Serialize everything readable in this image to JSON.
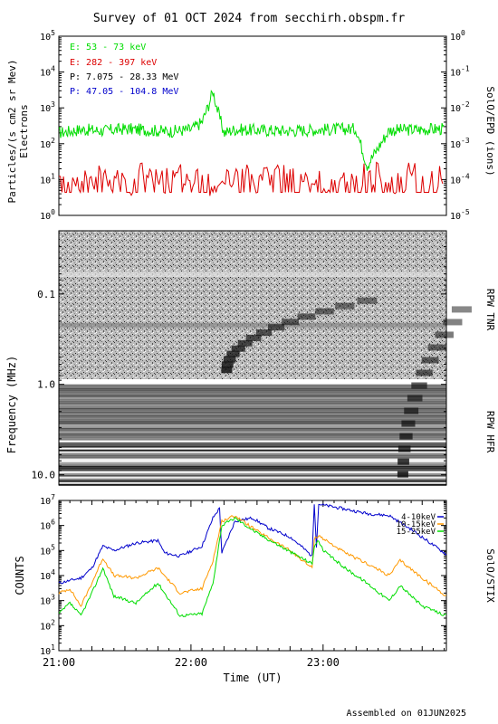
{
  "title": "Survey of 01 OCT 2024 from secchirh.obspm.fr",
  "footer": "Assembled on 01JUN2025",
  "colors": {
    "green": "#00dd00",
    "red": "#dd0000",
    "blue": "#0000cc",
    "orange": "#ff9900",
    "black": "#000000"
  },
  "chart_data": [
    {
      "type": "line",
      "panel": "particles",
      "ylabel": "Particles/(s cm2 sr Mev)",
      "ylabel2": "Electrons",
      "right_label": "SolO/EPD (ions)",
      "yscale": "log",
      "ylim": [
        1,
        100000
      ],
      "y_ticks": [
        "10^0",
        "10^1",
        "10^2",
        "10^3",
        "10^4",
        "10^5"
      ],
      "y2lim": [
        1e-05,
        1
      ],
      "y2_ticks": [
        "10^-5",
        "10^-4",
        "10^-3",
        "10^-2",
        "10^-1",
        "10^0"
      ],
      "legend": [
        {
          "label": "E: 53 - 73 keV",
          "color": "green"
        },
        {
          "label": "E: 282 - 397 keV",
          "color": "red"
        },
        {
          "label": "P: 7.075 - 28.33 MeV",
          "color": "black"
        },
        {
          "label": "P: 47.05 - 104.8 MeV",
          "color": "blue"
        }
      ],
      "series": [
        {
          "name": "E: 53 - 73 keV",
          "color": "green",
          "x": [
            "21:00",
            "21:10",
            "21:20",
            "21:30",
            "21:40",
            "21:50",
            "22:00",
            "22:05",
            "22:08",
            "22:10",
            "22:12",
            "22:15",
            "22:20",
            "22:30",
            "22:45",
            "23:00",
            "23:15",
            "23:20",
            "23:30",
            "23:45",
            "23:55"
          ],
          "values": [
            200,
            250,
            230,
            260,
            240,
            220,
            250,
            400,
            1200,
            3000,
            900,
            200,
            250,
            240,
            230,
            250,
            260,
            25,
            240,
            250,
            260
          ]
        },
        {
          "name": "E: 282 - 397 keV",
          "color": "red",
          "x": [
            "21:00",
            "21:10",
            "21:20",
            "21:30",
            "21:40",
            "21:50",
            "22:00",
            "22:10",
            "22:20",
            "22:30",
            "22:40",
            "22:50",
            "23:00",
            "23:10",
            "23:20",
            "23:30",
            "23:40",
            "23:55"
          ],
          "values": [
            8,
            6,
            10,
            7,
            12,
            8,
            9,
            6,
            10,
            7,
            11,
            8,
            6,
            9,
            12,
            7,
            10,
            8
          ]
        }
      ]
    },
    {
      "type": "heatmap",
      "panel": "radio",
      "ylabel": "Frequency (MHz)",
      "yscale": "log",
      "y_ticks": [
        "0.1",
        "1.0",
        "10.0"
      ],
      "ylim": [
        0.02,
        13
      ],
      "right_labels": [
        "RPW TNR",
        "RPW HFR"
      ],
      "features": [
        {
          "name": "type III burst",
          "start_utc": "22:15",
          "f_high_mhz": 0.7,
          "f_low_mhz": 0.12
        },
        {
          "name": "type III burst",
          "start_utc": "23:35",
          "f_high_mhz": 10,
          "f_low_mhz": 0.15
        }
      ]
    },
    {
      "type": "line",
      "panel": "stix",
      "ylabel": "COUNTS",
      "right_label": "SolO/STIX",
      "xlabel": "Time (UT)",
      "yscale": "log",
      "ylim": [
        10,
        10000000
      ],
      "y_ticks": [
        "10^1",
        "10^2",
        "10^3",
        "10^4",
        "10^5",
        "10^6",
        "10^7"
      ],
      "x_ticks": [
        "21:00",
        "22:00",
        "23:00"
      ],
      "xlim": [
        "21:00",
        "23:56"
      ],
      "legend": [
        {
          "label": "4-10keV",
          "color": "blue"
        },
        {
          "label": "10-15keV",
          "color": "orange"
        },
        {
          "label": "15-25keV",
          "color": "green"
        }
      ],
      "series": [
        {
          "name": "4-10keV",
          "color": "blue",
          "x": [
            "21:00",
            "21:10",
            "21:15",
            "21:20",
            "21:25",
            "21:35",
            "21:45",
            "21:48",
            "21:55",
            "22:05",
            "22:10",
            "22:13",
            "22:14",
            "22:20",
            "22:28",
            "22:35",
            "22:45",
            "22:50",
            "22:55",
            "22:56",
            "22:57",
            "22:58",
            "22:59",
            "23:00",
            "23:05",
            "23:20",
            "23:30",
            "23:40",
            "23:56"
          ],
          "values": [
            5000,
            8000,
            20000,
            150000,
            100000,
            200000,
            250000,
            80000,
            60000,
            150000,
            2000000,
            5000000,
            80000,
            1500000,
            2000000,
            800000,
            350000,
            150000,
            60000,
            8000000,
            150000,
            7000000,
            7000000,
            6500000,
            5500000,
            3000000,
            2500000,
            700000,
            70000
          ]
        },
        {
          "name": "10-15keV",
          "color": "orange",
          "x": [
            "21:00",
            "21:05",
            "21:10",
            "21:15",
            "21:20",
            "21:25",
            "21:35",
            "21:45",
            "21:55",
            "22:05",
            "22:10",
            "22:14",
            "22:20",
            "22:30",
            "22:45",
            "22:55",
            "22:56",
            "22:58",
            "23:00",
            "23:10",
            "23:20",
            "23:30",
            "23:35",
            "23:45",
            "23:56"
          ],
          "values": [
            2000,
            3000,
            600,
            5000,
            50000,
            10000,
            8000,
            20000,
            2000,
            3000,
            40000,
            1500000,
            2500000,
            600000,
            100000,
            20000,
            300000,
            400000,
            300000,
            80000,
            30000,
            10000,
            40000,
            8000,
            1500
          ]
        },
        {
          "name": "15-25keV",
          "color": "green",
          "x": [
            "21:00",
            "21:05",
            "21:10",
            "21:15",
            "21:20",
            "21:25",
            "21:35",
            "21:45",
            "21:55",
            "22:05",
            "22:10",
            "22:14",
            "22:20",
            "22:30",
            "22:45",
            "22:55",
            "22:56",
            "22:58",
            "23:00",
            "23:10",
            "23:20",
            "23:30",
            "23:35",
            "23:45",
            "23:56"
          ],
          "values": [
            300,
            800,
            250,
            2000,
            20000,
            1500,
            800,
            5000,
            250,
            300,
            5000,
            1000000,
            2000000,
            500000,
            90000,
            30000,
            150000,
            250000,
            100000,
            20000,
            5000,
            1000,
            4000,
            600,
            250
          ]
        }
      ]
    }
  ]
}
